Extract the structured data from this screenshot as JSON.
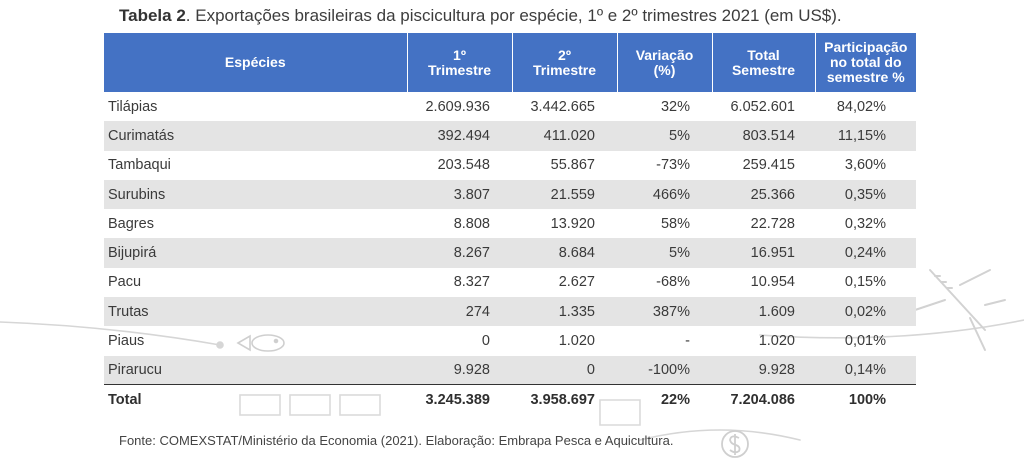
{
  "caption": {
    "label": "Tabela 2",
    "text": ". Exportações brasileiras da piscicultura por espécie, 1º e 2º trimestres 2021 (em US$)."
  },
  "table": {
    "headers": {
      "species": "Espécies",
      "q1": [
        "1º",
        "Trimestre"
      ],
      "q2": [
        "2º",
        "Trimestre"
      ],
      "variation": [
        "Variação",
        "(%)"
      ],
      "total": [
        "Total",
        "Semestre"
      ],
      "share": [
        "Participação",
        "no total do",
        "semestre %"
      ]
    },
    "rows": [
      {
        "species": "Tilápias",
        "q1": "2.609.936",
        "q2": "3.442.665",
        "variation": "32%",
        "total": "6.052.601",
        "share": "84,02%"
      },
      {
        "species": "Curimatás",
        "q1": "392.494",
        "q2": "411.020",
        "variation": "5%",
        "total": "803.514",
        "share": "11,15%"
      },
      {
        "species": "Tambaqui",
        "q1": "203.548",
        "q2": "55.867",
        "variation": "-73%",
        "total": "259.415",
        "share": "3,60%"
      },
      {
        "species": "Surubins",
        "q1": "3.807",
        "q2": "21.559",
        "variation": "466%",
        "total": "25.366",
        "share": "0,35%"
      },
      {
        "species": "Bagres",
        "q1": "8.808",
        "q2": "13.920",
        "variation": "58%",
        "total": "22.728",
        "share": "0,32%"
      },
      {
        "species": "Bijupirá",
        "q1": "8.267",
        "q2": "8.684",
        "variation": "5%",
        "total": "16.951",
        "share": "0,24%"
      },
      {
        "species": "Pacu",
        "q1": "8.327",
        "q2": "2.627",
        "variation": "-68%",
        "total": "10.954",
        "share": "0,15%"
      },
      {
        "species": "Trutas",
        "q1": "274",
        "q2": "1.335",
        "variation": "387%",
        "total": "1.609",
        "share": "0,02%"
      },
      {
        "species": "Piaus",
        "q1": "0",
        "q2": "1.020",
        "variation": "-",
        "total": "1.020",
        "share": "0,01%"
      },
      {
        "species": "Pirarucu",
        "q1": "9.928",
        "q2": "0",
        "variation": "-100%",
        "total": "9.928",
        "share": "0,14%"
      }
    ],
    "total_row": {
      "species": "Total",
      "q1": "3.245.389",
      "q2": "3.958.697",
      "variation": "22%",
      "total": "7.204.086",
      "share": "100%"
    }
  },
  "source": "Fonte: COMEXSTAT/Ministério da Economia (2021). Elaboração: Embrapa Pesca e Aquicultura.",
  "colors": {
    "header_bg": "#4472c4",
    "header_text": "#ffffff",
    "stripe": "#e4e4e4",
    "deco": "#d4d4d4"
  },
  "decor_icons": [
    "fish-icon",
    "airplane-icon",
    "dollar-coin-icon",
    "factory-icon"
  ]
}
